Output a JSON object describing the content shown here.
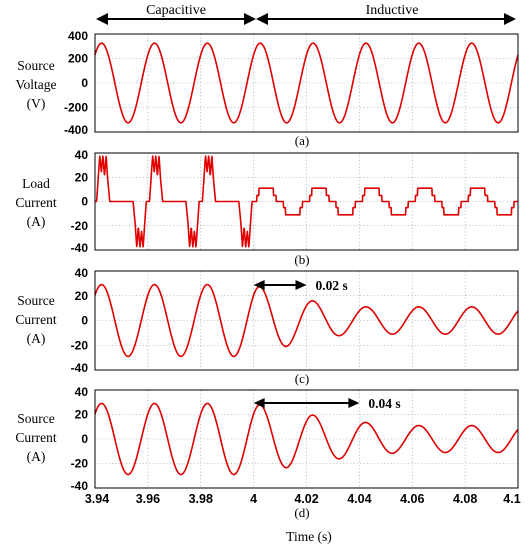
{
  "chart_data": [
    {
      "type": "line",
      "panel_label": "(a)",
      "ylabel": [
        "Source",
        "Voltage",
        "(V)"
      ],
      "ylim": [
        -400,
        400
      ],
      "yticks": [
        "400",
        "200",
        "0",
        "-200",
        "-400"
      ],
      "xlim": [
        3.94,
        4.1
      ],
      "grid": true,
      "color": "#e00000",
      "series": [
        {
          "waveform": "sine",
          "frequency_hz": 50,
          "amplitude": 325,
          "x_range": [
            3.94,
            4.1
          ]
        }
      ]
    },
    {
      "type": "line",
      "panel_label": "(b)",
      "ylabel": [
        "Load",
        "Current",
        "(A)"
      ],
      "ylim": [
        -40,
        40
      ],
      "yticks": [
        "40",
        "20",
        "0",
        "-20",
        "-40"
      ],
      "xlim": [
        3.94,
        4.1
      ],
      "grid": true,
      "color": "#e00000",
      "series": [
        {
          "waveform": "capacitive pulses",
          "x_range": [
            3.94,
            4.0
          ],
          "peak": 38
        },
        {
          "waveform": "inductive stepped",
          "x_range": [
            4.0,
            4.1
          ],
          "peak": 11,
          "step": 5
        }
      ]
    },
    {
      "type": "line",
      "panel_label": "(c)",
      "ylabel": [
        "Source",
        "Current",
        "(A)"
      ],
      "ylim": [
        -40,
        40
      ],
      "yticks": [
        "40",
        "20",
        "0",
        "-20",
        "-40"
      ],
      "xlim": [
        3.94,
        4.1
      ],
      "grid": true,
      "color": "#e00000",
      "annotation": "0.02 s",
      "annotation_span": [
        4.0,
        4.02
      ],
      "series": [
        {
          "waveform": "sine",
          "frequency_hz": 50,
          "amplitude_before": 29,
          "amplitude_after": 11,
          "transition_start": 4.0,
          "transition_duration": 0.02
        }
      ]
    },
    {
      "type": "line",
      "panel_label": "(d)",
      "ylabel": [
        "Source",
        "Current",
        "(A)"
      ],
      "ylim": [
        -40,
        40
      ],
      "yticks": [
        "40",
        "20",
        "0",
        "-20",
        "-40"
      ],
      "xlim": [
        3.94,
        4.1
      ],
      "xticks": [
        "3.94",
        "3.96",
        "3.98",
        "4",
        "4.02",
        "4.04",
        "4.06",
        "4.08",
        "4.1"
      ],
      "xlabel": "Time (s)",
      "grid": true,
      "color": "#e00000",
      "annotation": "0.04 s",
      "annotation_span": [
        4.0,
        4.04
      ],
      "series": [
        {
          "waveform": "sine",
          "frequency_hz": 50,
          "amplitude_before": 29,
          "amplitude_after": 11,
          "transition_start": 4.0,
          "transition_duration": 0.04
        }
      ]
    }
  ],
  "regions": {
    "left": "Capacitive",
    "right": "Inductive"
  }
}
